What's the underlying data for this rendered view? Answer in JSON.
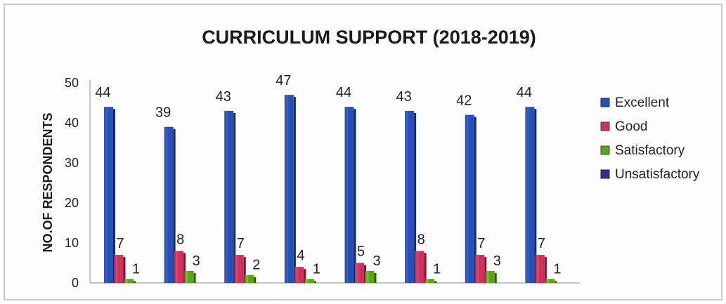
{
  "chart_data": {
    "type": "bar",
    "title": "CURRICULUM SUPPORT (2018-2019)",
    "xlabel": "",
    "ylabel": "NO.OF RESPONDENTS",
    "ylim": [
      0,
      50
    ],
    "yticks": [
      "0",
      "10",
      "20",
      "30",
      "40",
      "50"
    ],
    "categories": [
      "",
      "",
      "",
      "",
      "",
      "",
      "",
      ""
    ],
    "series": [
      {
        "name": "Excellent",
        "color": "#2a4fae",
        "values": [
          44,
          39,
          43,
          47,
          44,
          43,
          42,
          44
        ]
      },
      {
        "name": "Good",
        "color": "#c8345a",
        "values": [
          7,
          8,
          7,
          4,
          5,
          8,
          7,
          7
        ]
      },
      {
        "name": "Satisfactory",
        "color": "#5ea11e",
        "values": [
          1,
          3,
          2,
          1,
          3,
          1,
          3,
          1
        ]
      },
      {
        "name": "Unsatisfactory",
        "color": "#3d2a8a",
        "values": [
          0,
          0,
          0,
          0,
          0,
          0,
          0,
          0
        ]
      }
    ],
    "data_labels": {
      "Excellent": [
        "44",
        "39",
        "43",
        "47",
        "44",
        "43",
        "42",
        "44"
      ],
      "Good": [
        "7",
        "8",
        "7",
        "4",
        "5",
        "8",
        "7",
        "7"
      ],
      "Satisfactory": [
        "1",
        "3",
        "2",
        "1",
        "3",
        "1",
        "3",
        "1"
      ]
    },
    "legend": {
      "position": "right",
      "entries": [
        "Excellent",
        "Good",
        "Satisfactory",
        "Unsatisfactory"
      ]
    },
    "grid": false
  }
}
